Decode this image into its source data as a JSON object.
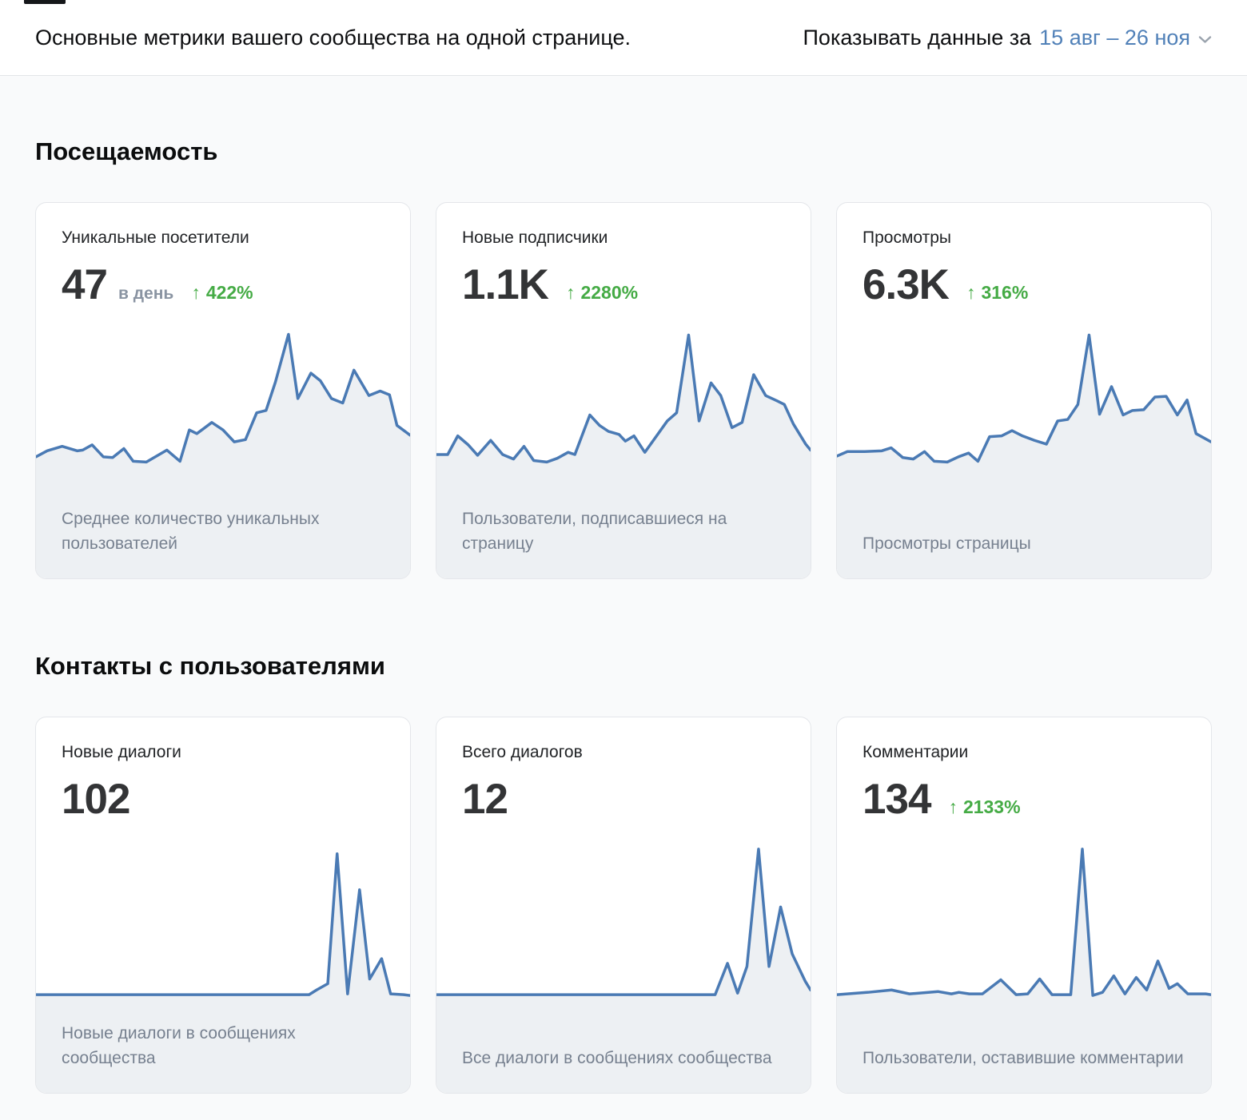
{
  "header": {
    "subtitle": "Основные метрики вашего сообщества на одной странице.",
    "period_label": "Показывать данные за",
    "period_value": "15 авг – 26 ноя"
  },
  "colors": {
    "link_blue": "#5181b8",
    "positive_green": "#45ab45",
    "chart_line": "#4a7ab4",
    "chart_fill": "#edf0f3"
  },
  "sections": [
    {
      "title": "Посещаемость",
      "cards": [
        {
          "title": "Уникальные посетители",
          "value": "47",
          "unit": "в день",
          "delta": "422%",
          "caption": "Среднее количество уникальных пользователей",
          "sparkline": [
            [
              0,
              14
            ],
            [
              3,
              18
            ],
            [
              7,
              21
            ],
            [
              11,
              18
            ],
            [
              12.5,
              18.5
            ],
            [
              15,
              22
            ],
            [
              18,
              14
            ],
            [
              20.5,
              13.5
            ],
            [
              23.5,
              19.5
            ],
            [
              26,
              11
            ],
            [
              29.5,
              10.5
            ],
            [
              35,
              18.5
            ],
            [
              38.5,
              11
            ],
            [
              41,
              32
            ],
            [
              43,
              29.5
            ],
            [
              47,
              37
            ],
            [
              50,
              32
            ],
            [
              53,
              24
            ],
            [
              56,
              25.5
            ],
            [
              59,
              43.5
            ],
            [
              61.5,
              45
            ],
            [
              64,
              64
            ],
            [
              67.5,
              96
            ],
            [
              70,
              53
            ],
            [
              73.5,
              70
            ],
            [
              76,
              65
            ],
            [
              79,
              53
            ],
            [
              82,
              50
            ],
            [
              85,
              72
            ],
            [
              89,
              55
            ],
            [
              92,
              58
            ],
            [
              94.5,
              55.5
            ],
            [
              96.5,
              35
            ],
            [
              100,
              28.5
            ]
          ]
        },
        {
          "title": "Новые подписчики",
          "value": "1.1K",
          "unit": "",
          "delta": "2280%",
          "caption": "Пользователи, подписавшиеся на страницу",
          "sparkline": [
            [
              0,
              15.5
            ],
            [
              3,
              15.5
            ],
            [
              5.7,
              28
            ],
            [
              8.5,
              22
            ],
            [
              11,
              15
            ],
            [
              14.5,
              25
            ],
            [
              17.7,
              15.5
            ],
            [
              20.6,
              12.5
            ],
            [
              23.4,
              21
            ],
            [
              26,
              11.5
            ],
            [
              29.5,
              10.5
            ],
            [
              32.3,
              13
            ],
            [
              35.2,
              17
            ],
            [
              37,
              15.5
            ],
            [
              41,
              42
            ],
            [
              43.6,
              35
            ],
            [
              46,
              31
            ],
            [
              48.8,
              29
            ],
            [
              50.5,
              24.5
            ],
            [
              52.8,
              28
            ],
            [
              55.7,
              17
            ],
            [
              61.7,
              38
            ],
            [
              64.2,
              43.5
            ],
            [
              67.4,
              95.5
            ],
            [
              70.2,
              38
            ],
            [
              73.4,
              63.5
            ],
            [
              76,
              55
            ],
            [
              79,
              33.5
            ],
            [
              81.7,
              37
            ],
            [
              84.8,
              69
            ],
            [
              88,
              55
            ],
            [
              91,
              51.5
            ],
            [
              93,
              49
            ],
            [
              95.4,
              36
            ],
            [
              98.7,
              22.5
            ],
            [
              100,
              18.5
            ]
          ]
        },
        {
          "title": "Просмотры",
          "value": "6.3K",
          "unit": "",
          "delta": "316%",
          "caption": "Просмотры страницы",
          "sparkline": [
            [
              0,
              14.5
            ],
            [
              2.8,
              17.5
            ],
            [
              7.4,
              17.5
            ],
            [
              12,
              18
            ],
            [
              14.5,
              20
            ],
            [
              17.6,
              13.5
            ],
            [
              20.4,
              12.5
            ],
            [
              23.4,
              17.5
            ],
            [
              26,
              11
            ],
            [
              29.5,
              10.5
            ],
            [
              32.5,
              14
            ],
            [
              35.2,
              16.5
            ],
            [
              37.7,
              11
            ],
            [
              40.8,
              27.5
            ],
            [
              44,
              28
            ],
            [
              46.8,
              31.5
            ],
            [
              49.6,
              28
            ],
            [
              52.8,
              25
            ],
            [
              56,
              22.5
            ],
            [
              59,
              38
            ],
            [
              61.7,
              39
            ],
            [
              64.4,
              49
            ],
            [
              67.4,
              95.5
            ],
            [
              70.2,
              42.5
            ],
            [
              73.4,
              61
            ],
            [
              76.5,
              42
            ],
            [
              79,
              45
            ],
            [
              82,
              45.5
            ],
            [
              85,
              54
            ],
            [
              88,
              54.5
            ],
            [
              91,
              42
            ],
            [
              93.6,
              52
            ],
            [
              96,
              29.5
            ],
            [
              100,
              24
            ]
          ]
        }
      ]
    },
    {
      "title": "Контакты с пользователями",
      "cards": [
        {
          "title": "Новые диалоги",
          "value": "102",
          "unit": "",
          "delta": "",
          "caption": "Новые диалоги в сообщениях сообщества",
          "sparkline": [
            [
              0,
              3
            ],
            [
              73,
              3
            ],
            [
              75,
              6
            ],
            [
              78,
              10
            ],
            [
              80.5,
              93
            ],
            [
              83.3,
              3.5
            ],
            [
              86.5,
              70
            ],
            [
              89.2,
              13
            ],
            [
              92.4,
              26
            ],
            [
              94.8,
              3.5
            ],
            [
              98.3,
              3
            ],
            [
              100,
              2.5
            ]
          ]
        },
        {
          "title": "Всего диалогов",
          "value": "12",
          "unit": "",
          "delta": "",
          "caption": "Все диалоги в сообщениях сообщества",
          "sparkline": [
            [
              0,
              3
            ],
            [
              74.5,
              3
            ],
            [
              77.8,
              23
            ],
            [
              80.5,
              4
            ],
            [
              83,
              21
            ],
            [
              86.1,
              96
            ],
            [
              88.9,
              21
            ],
            [
              92,
              59
            ],
            [
              95.1,
              29
            ],
            [
              98.6,
              11.5
            ],
            [
              100,
              6
            ]
          ]
        },
        {
          "title": "Комментарии",
          "value": "134",
          "unit": "",
          "delta": "2133%",
          "caption": "Пользователи, оставившие комментарии",
          "sparkline": [
            [
              0,
              3
            ],
            [
              8.3,
              4.5
            ],
            [
              14.6,
              6
            ],
            [
              19.4,
              3.5
            ],
            [
              27,
              5
            ],
            [
              30.6,
              3.5
            ],
            [
              32.6,
              4.5
            ],
            [
              35.4,
              3.5
            ],
            [
              38.9,
              3.5
            ],
            [
              43.8,
              12.5
            ],
            [
              47.9,
              3
            ],
            [
              51,
              3.5
            ],
            [
              54.2,
              13
            ],
            [
              57.5,
              3
            ],
            [
              62.5,
              3
            ],
            [
              65.6,
              96
            ],
            [
              68.4,
              2.5
            ],
            [
              71,
              4.5
            ],
            [
              74,
              15
            ],
            [
              77,
              3.5
            ],
            [
              80,
              14
            ],
            [
              82.8,
              6
            ],
            [
              85.8,
              24.5
            ],
            [
              88.8,
              7
            ],
            [
              91,
              10
            ],
            [
              93.8,
              3.5
            ],
            [
              98.6,
              3.5
            ],
            [
              100,
              3
            ]
          ]
        }
      ]
    }
  ]
}
